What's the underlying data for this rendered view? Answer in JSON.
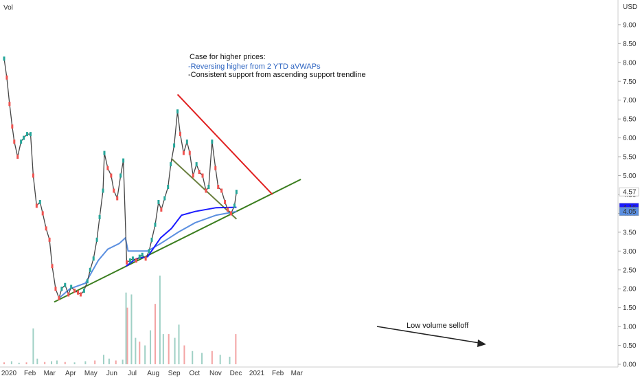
{
  "chart_data": {
    "type": "candlestick",
    "title": "",
    "volume_label": "Vol",
    "currency_label": "USD",
    "x_ticks": [
      "2020",
      "Feb",
      "Mar",
      "Apr",
      "May",
      "Jun",
      "Jul",
      "Aug",
      "Sep",
      "Oct",
      "Nov",
      "Dec",
      "2021",
      "Feb",
      "Mar"
    ],
    "y_ticks": [
      "9.00",
      "8.50",
      "8.00",
      "7.50",
      "7.00",
      "6.50",
      "6.00",
      "5.50",
      "5.00",
      "4.50",
      "4.00",
      "3.50",
      "3.00",
      "2.50",
      "2.00",
      "1.50",
      "1.00",
      "0.50",
      "0.00"
    ],
    "ylim": [
      0,
      9.25
    ],
    "grid": false,
    "price_labels": [
      {
        "text": "4.57",
        "value": 4.57,
        "color": "#ffffff",
        "text_color": "#333333"
      },
      {
        "text": "4.16",
        "value": 4.16,
        "color": "#1a1aff",
        "text_color": "#ffffff"
      },
      {
        "text": "4.05",
        "value": 4.05,
        "color": "#5b8fe0",
        "text_color": "#ffffff"
      }
    ],
    "price_series": [
      [
        "2020-01-02",
        8.1
      ],
      [
        "2020-01-06",
        7.6
      ],
      [
        "2020-01-10",
        6.9
      ],
      [
        "2020-01-14",
        6.3
      ],
      [
        "2020-01-17",
        5.9
      ],
      [
        "2020-01-22",
        5.5
      ],
      [
        "2020-01-27",
        5.9
      ],
      [
        "2020-01-31",
        6.0
      ],
      [
        "2020-02-05",
        6.1
      ],
      [
        "2020-02-10",
        6.1
      ],
      [
        "2020-02-14",
        5.0
      ],
      [
        "2020-02-19",
        4.2
      ],
      [
        "2020-02-24",
        4.3
      ],
      [
        "2020-02-28",
        4.0
      ],
      [
        "2020-03-04",
        3.6
      ],
      [
        "2020-03-09",
        3.3
      ],
      [
        "2020-03-13",
        2.6
      ],
      [
        "2020-03-18",
        2.0
      ],
      [
        "2020-03-23",
        1.75
      ],
      [
        "2020-03-27",
        2.0
      ],
      [
        "2020-04-01",
        2.1
      ],
      [
        "2020-04-06",
        1.85
      ],
      [
        "2020-04-10",
        2.05
      ],
      [
        "2020-04-15",
        1.95
      ],
      [
        "2020-04-20",
        1.9
      ],
      [
        "2020-04-24",
        1.85
      ],
      [
        "2020-04-29",
        1.95
      ],
      [
        "2020-05-04",
        2.2
      ],
      [
        "2020-05-08",
        2.5
      ],
      [
        "2020-05-13",
        2.8
      ],
      [
        "2020-05-18",
        3.3
      ],
      [
        "2020-05-22",
        3.9
      ],
      [
        "2020-05-27",
        4.6
      ],
      [
        "2020-05-29",
        5.6
      ],
      [
        "2020-06-03",
        5.2
      ],
      [
        "2020-06-08",
        5.0
      ],
      [
        "2020-06-12",
        4.6
      ],
      [
        "2020-06-17",
        4.4
      ],
      [
        "2020-06-22",
        5.0
      ],
      [
        "2020-06-26",
        5.4
      ],
      [
        "2020-07-01",
        2.7
      ],
      [
        "2020-07-06",
        2.75
      ],
      [
        "2020-07-10",
        2.8
      ],
      [
        "2020-07-15",
        2.75
      ],
      [
        "2020-07-20",
        2.85
      ],
      [
        "2020-07-24",
        2.9
      ],
      [
        "2020-07-29",
        2.8
      ],
      [
        "2020-08-03",
        3.0
      ],
      [
        "2020-08-07",
        3.3
      ],
      [
        "2020-08-12",
        3.7
      ],
      [
        "2020-08-17",
        4.3
      ],
      [
        "2020-08-21",
        4.1
      ],
      [
        "2020-08-26",
        4.4
      ],
      [
        "2020-08-31",
        4.7
      ],
      [
        "2020-09-04",
        5.3
      ],
      [
        "2020-09-09",
        5.8
      ],
      [
        "2020-09-14",
        6.7
      ],
      [
        "2020-09-18",
        6.1
      ],
      [
        "2020-09-23",
        5.6
      ],
      [
        "2020-09-28",
        5.9
      ],
      [
        "2020-10-02",
        5.6
      ],
      [
        "2020-10-07",
        5.0
      ],
      [
        "2020-10-12",
        5.3
      ],
      [
        "2020-10-16",
        5.1
      ],
      [
        "2020-10-21",
        5.0
      ],
      [
        "2020-10-26",
        4.6
      ],
      [
        "2020-10-30",
        4.7
      ],
      [
        "2020-11-04",
        5.9
      ],
      [
        "2020-11-09",
        5.2
      ],
      [
        "2020-11-13",
        4.7
      ],
      [
        "2020-11-18",
        4.6
      ],
      [
        "2020-11-23",
        4.3
      ],
      [
        "2020-11-27",
        4.1
      ],
      [
        "2020-12-02",
        4.0
      ],
      [
        "2020-12-07",
        4.2
      ],
      [
        "2020-12-10",
        4.57
      ]
    ],
    "volume_series": [
      [
        "2020-01-02",
        0.05
      ],
      [
        "2020-01-13",
        0.08
      ],
      [
        "2020-01-24",
        0.04
      ],
      [
        "2020-02-04",
        0.05
      ],
      [
        "2020-02-14",
        0.95
      ],
      [
        "2020-02-20",
        0.15
      ],
      [
        "2020-03-02",
        0.06
      ],
      [
        "2020-03-12",
        0.08
      ],
      [
        "2020-03-20",
        0.1
      ],
      [
        "2020-04-01",
        0.06
      ],
      [
        "2020-04-15",
        0.05
      ],
      [
        "2020-05-01",
        0.08
      ],
      [
        "2020-05-15",
        0.1
      ],
      [
        "2020-05-28",
        0.25
      ],
      [
        "2020-06-05",
        0.15
      ],
      [
        "2020-06-15",
        0.1
      ],
      [
        "2020-06-25",
        0.12
      ],
      [
        "2020-06-30",
        1.9
      ],
      [
        "2020-07-02",
        1.5
      ],
      [
        "2020-07-08",
        1.85
      ],
      [
        "2020-07-14",
        0.7
      ],
      [
        "2020-07-20",
        0.6
      ],
      [
        "2020-07-28",
        0.5
      ],
      [
        "2020-08-05",
        0.9
      ],
      [
        "2020-08-12",
        1.6
      ],
      [
        "2020-08-19",
        2.35
      ],
      [
        "2020-08-24",
        0.8
      ],
      [
        "2020-09-01",
        0.8
      ],
      [
        "2020-09-10",
        0.7
      ],
      [
        "2020-09-16",
        1.05
      ],
      [
        "2020-09-24",
        0.5
      ],
      [
        "2020-10-06",
        0.35
      ],
      [
        "2020-10-20",
        0.3
      ],
      [
        "2020-11-04",
        0.35
      ],
      [
        "2020-11-16",
        0.25
      ],
      [
        "2020-11-30",
        0.2
      ],
      [
        "2020-12-09",
        0.8
      ]
    ],
    "avwap_lines": [
      {
        "color": "#5b8fe0",
        "points": [
          [
            "2020-03-23",
            1.75
          ],
          [
            "2020-04-08",
            2.0
          ],
          [
            "2020-05-01",
            2.15
          ],
          [
            "2020-05-20",
            2.75
          ],
          [
            "2020-06-03",
            3.05
          ],
          [
            "2020-06-20",
            3.2
          ],
          [
            "2020-06-29",
            3.35
          ],
          [
            "2020-07-03",
            3.0
          ],
          [
            "2020-07-15",
            3.0
          ],
          [
            "2020-08-01",
            3.0
          ],
          [
            "2020-08-20",
            3.2
          ],
          [
            "2020-09-15",
            3.5
          ],
          [
            "2020-10-10",
            3.75
          ],
          [
            "2020-11-10",
            3.95
          ],
          [
            "2020-12-10",
            4.05
          ]
        ]
      },
      {
        "color": "#1a1aff",
        "points": [
          [
            "2020-06-30",
            2.6
          ],
          [
            "2020-07-15",
            2.8
          ],
          [
            "2020-08-01",
            2.85
          ],
          [
            "2020-08-20",
            3.35
          ],
          [
            "2020-09-05",
            3.6
          ],
          [
            "2020-09-20",
            3.95
          ],
          [
            "2020-10-10",
            4.05
          ],
          [
            "2020-11-10",
            4.15
          ],
          [
            "2020-12-10",
            4.16
          ]
        ]
      }
    ],
    "trendlines": [
      {
        "color": "#3a7d1e",
        "from": [
          "2020-03-16",
          1.65
        ],
        "to": [
          "2021-03-15",
          4.9
        ]
      },
      {
        "color": "#e02020",
        "from": [
          "2020-09-14",
          7.15
        ],
        "to": [
          "2021-02-01",
          4.5
        ]
      },
      {
        "color": "#6b8040",
        "from": [
          "2020-09-05",
          5.45
        ],
        "to": [
          "2020-12-10",
          3.85
        ]
      }
    ],
    "annotations": {
      "header": "Case for higher prices:",
      "line1": "-Reversing higher from 2 YTD aVWAPs",
      "line2": "-Consistent support from ascending support trendline",
      "arrow_label": "Low volume selloff"
    }
  }
}
